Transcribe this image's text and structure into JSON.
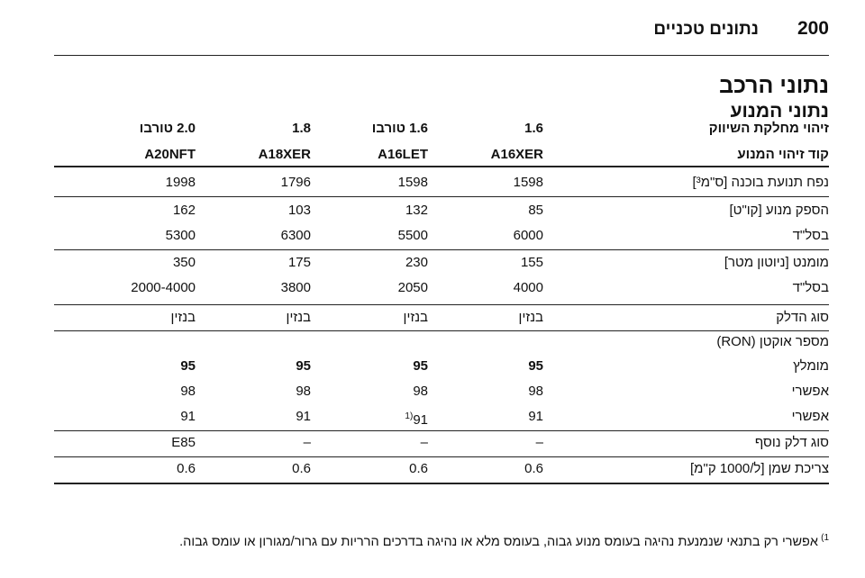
{
  "header": {
    "page_number": "200",
    "title": "נתונים טכניים"
  },
  "section_title": "נתוני הרכב",
  "subsection_title": "נתוני המנוע",
  "table": {
    "header_rows": [
      [
        "זיהוי מחלקת השיווק",
        "1.6",
        "1.6 טורבו",
        "1.8",
        "2.0 טורבו"
      ],
      [
        "קוד זיהוי המנוע",
        "A16XER",
        "A16LET",
        "A18XER",
        "A20NFT"
      ]
    ],
    "rows": [
      [
        "נפח תנועת בוכנה [ס\"מ³]",
        "1598",
        "1598",
        "1796",
        "1998"
      ],
      [
        "הספק מנוע [קו\"ט]",
        "85",
        "132",
        "103",
        "162"
      ],
      [
        "בסל\"ד",
        "6000",
        "5500",
        "6300",
        "5300"
      ],
      [
        "מומנט [ניוטון מטר]",
        "155",
        "230",
        "175",
        "350"
      ],
      [
        "בסל\"ד",
        "4000",
        "2050",
        "3800",
        "2000-4000"
      ],
      [
        "סוג הדלק",
        "בנזין",
        "בנזין",
        "בנזין",
        "בנזין"
      ],
      [
        "מספר אוקטן (RON)"
      ],
      [
        "מומלץ",
        "95",
        "95",
        "95",
        "95"
      ],
      [
        "אפשרי",
        "98",
        "98",
        "98",
        "98"
      ],
      [
        "אפשרי",
        "91",
        {
          "text": "91",
          "sup": "1)"
        },
        "91",
        "91"
      ],
      [
        "סוג דלק נוסף",
        "–",
        "–",
        "–",
        "E85"
      ],
      [
        "צריכת שמן [ל/1000 ק\"מ]",
        "0.6",
        "0.6",
        "0.6",
        "0.6"
      ]
    ]
  },
  "footnote": {
    "marker": "1)",
    "text": "אפשרי רק בתנאי שנמנעת נהיגה בעומס מנוע גבוה, בעומס מלא או נהיגה בדרכים הרריות עם גרור/מגורון או עומס גבוה."
  }
}
